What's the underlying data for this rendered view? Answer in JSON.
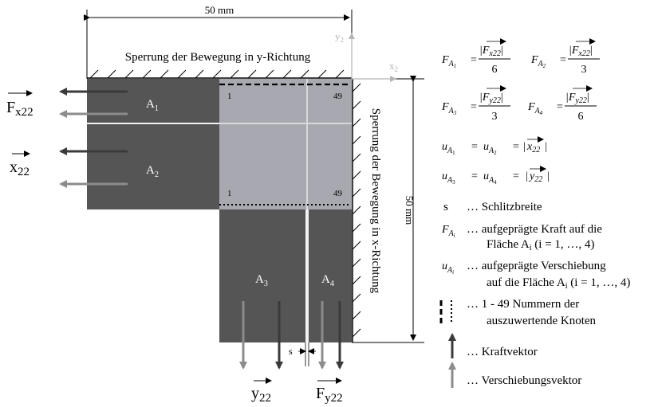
{
  "colors": {
    "dark_region": "#555555",
    "light_region": "#a8a8b0",
    "slit": "#f2f2f2",
    "force_arrow": "#3a3a3a",
    "displacement_arrow": "#8c8c8c",
    "axis_gray": "#b5b5b5",
    "line": "#000000"
  },
  "diagram": {
    "dim_top": "50 mm",
    "dim_right": "50 mm",
    "support_top_label": "Sperrung der Bewegung in y-Richtung",
    "support_right_label": "Sperrung der Bewegung in x-Richtung",
    "axis_y2": "y",
    "axis_y2_sub": "2",
    "axis_x2": "x",
    "axis_x2_sub": "2",
    "region_a1": "A",
    "region_a1_sub": "1",
    "region_a2": "A",
    "region_a2_sub": "2",
    "region_a3": "A",
    "region_a3_sub": "3",
    "region_a4": "A",
    "region_a4_sub": "4",
    "node_top_left": "1",
    "node_top_right": "49",
    "node_bottom_left": "1",
    "node_bottom_right": "49",
    "label_fx22": "F",
    "label_fx22_sub": "x22",
    "label_x22": "x",
    "label_x22_sub": "22",
    "label_y22": "y",
    "label_y22_sub": "22",
    "label_fy22": "F",
    "label_fy22_sub": "y22",
    "slit_label": "s"
  },
  "legend": {
    "f_a1_lhs": "F",
    "f_a1_sub": "A",
    "f_a1_subsub": "1",
    "f_a1_num": "|F",
    "f_a1_num_sub": "x22",
    "f_a1_den": "6",
    "f_a2_lhs": "F",
    "f_a2_sub": "A",
    "f_a2_subsub": "2",
    "f_a2_num": "|F",
    "f_a2_num_sub": "x22",
    "f_a2_den": "3",
    "f_a3_lhs": "F",
    "f_a3_sub": "A",
    "f_a3_subsub": "3",
    "f_a3_num": "|F",
    "f_a3_num_sub": "y22",
    "f_a3_den": "3",
    "f_a4_lhs": "F",
    "f_a4_sub": "A",
    "f_a4_subsub": "4",
    "f_a4_num": "|F",
    "f_a4_num_sub": "y22",
    "f_a4_den": "6",
    "u_x_text_1": "u",
    "u_x_sub_1": "A",
    "u_x_subsub_1": "1",
    "u_x_text_2": "u",
    "u_x_sub_2": "A",
    "u_x_subsub_2": "2",
    "u_x_rhs": "x",
    "u_x_rhs_sub": "22",
    "u_y_text_1": "u",
    "u_y_sub_1": "A",
    "u_y_subsub_1": "3",
    "u_y_text_2": "u",
    "u_y_sub_2": "A",
    "u_y_subsub_2": "4",
    "u_y_rhs": "y",
    "u_y_rhs_sub": "22",
    "eq": "=",
    "bar": "|",
    "s_symbol": "s",
    "s_text": "… Schlitzbreite",
    "fai_symbol": "F",
    "fai_sub": "A",
    "fai_subsub": "i",
    "fai_text_1": "… aufgeprägte Kraft auf die",
    "fai_text_2": "Fläche A",
    "fai_text_2_sub": "i",
    "fai_text_2_rest": " (i = 1, …, 4)",
    "uai_symbol": "u",
    "uai_sub": "A",
    "uai_subsub": "i",
    "uai_text_1": "… aufgeprägte Verschiebung",
    "uai_text_2": "auf die Fläche A",
    "uai_text_2_sub": "i",
    "uai_text_2_rest": " (i = 1, …, 4)",
    "nodes_text_1": "… 1 - 49 Nummern der",
    "nodes_text_2": "auszuwertende Knoten",
    "force_text": "… Kraftvektor",
    "disp_text": "… Verschiebungsvektor"
  }
}
